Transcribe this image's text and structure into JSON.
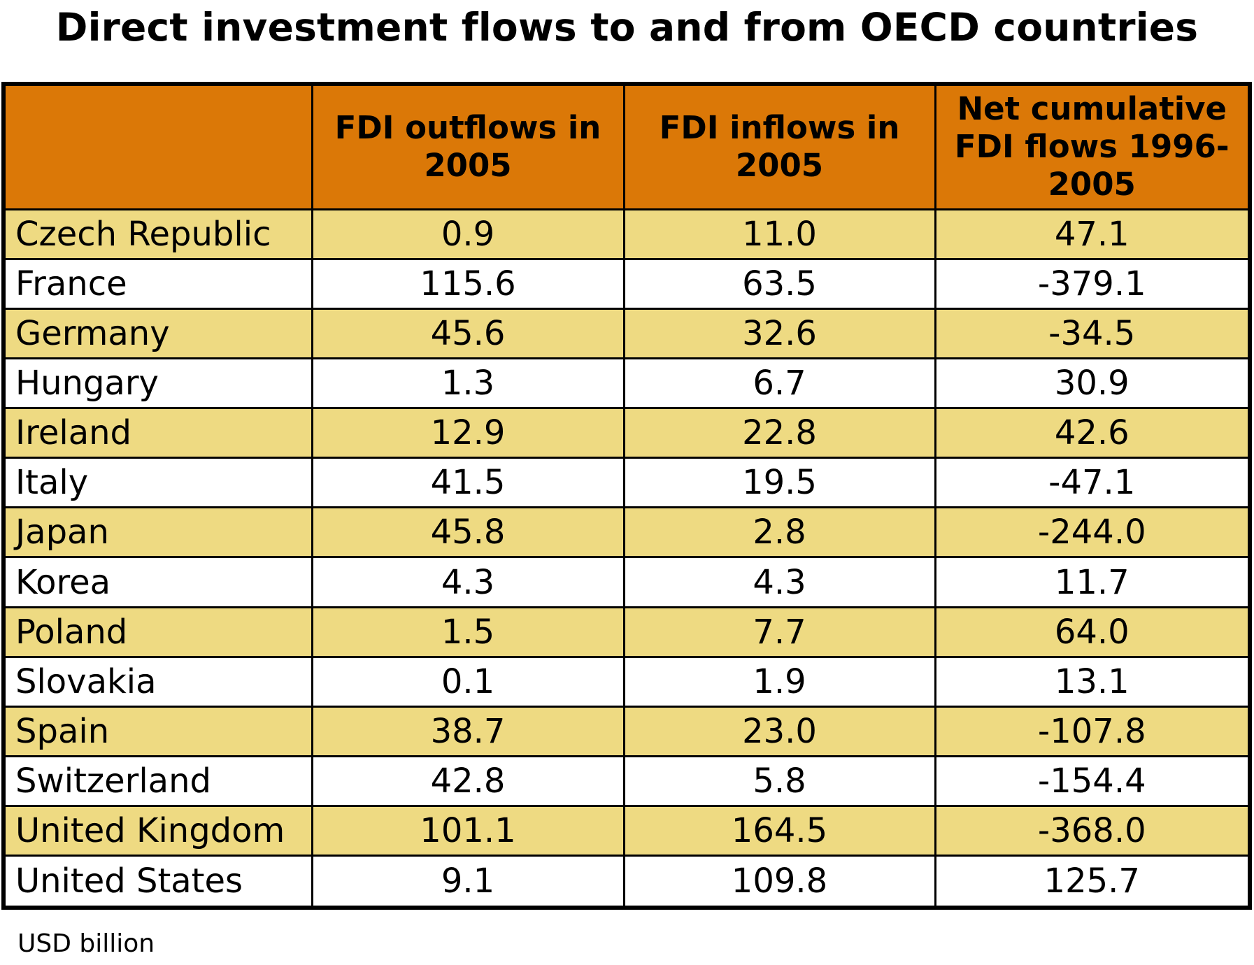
{
  "chart_data": {
    "type": "table",
    "title": "Direct investment flows to and from OECD countries",
    "columns": [
      "",
      "FDI outflows in 2005",
      "FDI inflows in 2005",
      "Net cumulative FDI flows 1996-2005"
    ],
    "rows": [
      {
        "country": "Czech Republic",
        "outflows": "0.9",
        "inflows": "11.0",
        "net": "47.1"
      },
      {
        "country": "France",
        "outflows": "115.6",
        "inflows": "63.5",
        "net": "-379.1"
      },
      {
        "country": "Germany",
        "outflows": "45.6",
        "inflows": "32.6",
        "net": "-34.5"
      },
      {
        "country": "Hungary",
        "outflows": "1.3",
        "inflows": "6.7",
        "net": "30.9"
      },
      {
        "country": "Ireland",
        "outflows": "12.9",
        "inflows": "22.8",
        "net": "42.6"
      },
      {
        "country": "Italy",
        "outflows": "41.5",
        "inflows": "19.5",
        "net": "-47.1"
      },
      {
        "country": "Japan",
        "outflows": "45.8",
        "inflows": "2.8",
        "net": "-244.0"
      },
      {
        "country": "Korea",
        "outflows": "4.3",
        "inflows": "4.3",
        "net": "11.7"
      },
      {
        "country": "Poland",
        "outflows": "1.5",
        "inflows": "7.7",
        "net": "64.0"
      },
      {
        "country": "Slovakia",
        "outflows": "0.1",
        "inflows": "1.9",
        "net": "13.1"
      },
      {
        "country": "Spain",
        "outflows": "38.7",
        "inflows": "23.0",
        "net": "-107.8"
      },
      {
        "country": "Switzerland",
        "outflows": "42.8",
        "inflows": "5.8",
        "net": "-154.4"
      },
      {
        "country": "United Kingdom",
        "outflows": "101.1",
        "inflows": "164.5",
        "net": "-368.0"
      },
      {
        "country": "United States",
        "outflows": "9.1",
        "inflows": "109.8",
        "net": "125.7"
      }
    ],
    "footnote": "USD billion"
  },
  "colors": {
    "header_bg": "#db7807",
    "band_row_bg": "#eeda82",
    "plain_row_bg": "#ffffff",
    "border": "#000000"
  }
}
